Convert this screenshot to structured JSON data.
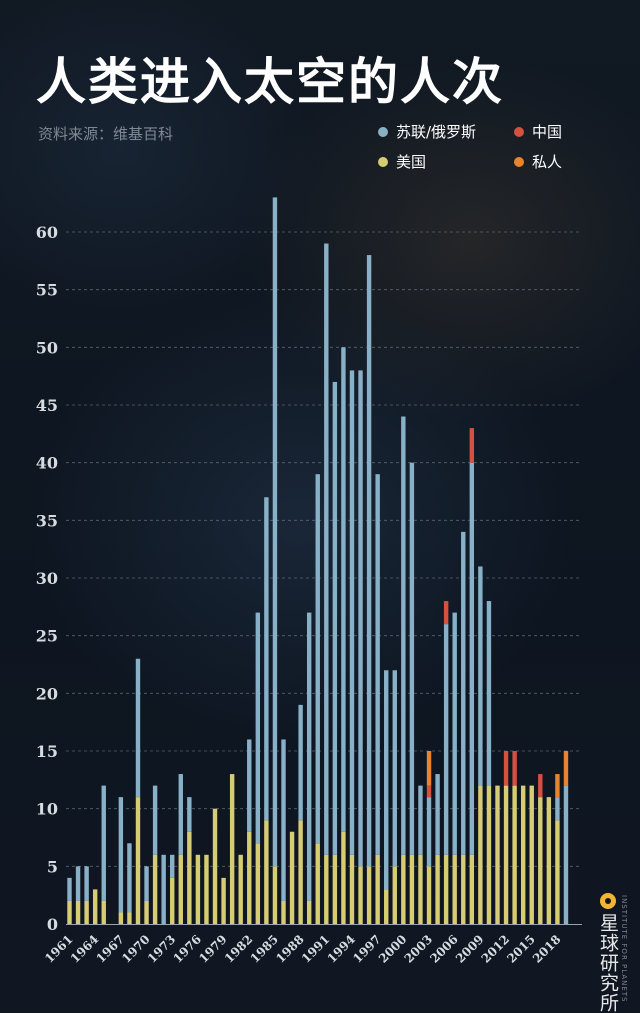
{
  "title": "人类进入太空的人次",
  "source": "资料来源：维基百科",
  "brand": {
    "name": "星球研究所",
    "subtitle": "INSTITUTE FOR PLANETS"
  },
  "colors": {
    "ussr_russia": "#88b1c8",
    "usa": "#d6cc72",
    "china": "#d4503f",
    "private": "#e8842d",
    "grid": "#6c7480",
    "tick": "#d8dce0"
  },
  "chart_data": {
    "type": "bar",
    "stacked": true,
    "title": "人类进入太空的人次",
    "years": [
      1961,
      1962,
      1963,
      1964,
      1965,
      1966,
      1967,
      1968,
      1969,
      1970,
      1971,
      1972,
      1973,
      1974,
      1975,
      1976,
      1977,
      1978,
      1979,
      1980,
      1981,
      1982,
      1983,
      1984,
      1985,
      1986,
      1987,
      1988,
      1989,
      1990,
      1991,
      1992,
      1993,
      1994,
      1995,
      1996,
      1997,
      1998,
      1999,
      2000,
      2001,
      2002,
      2003,
      2004,
      2005,
      2006,
      2007,
      2008,
      2009,
      2010,
      2011,
      2012,
      2013,
      2014,
      2015,
      2016,
      2017,
      2018,
      2019
    ],
    "x_tick_labels": [
      "1961",
      "1964",
      "1967",
      "1970",
      "1973",
      "1976",
      "1979",
      "1982",
      "1985",
      "1988",
      "1991",
      "1994",
      "1997",
      "2000",
      "2003",
      "2006",
      "2009",
      "2012",
      "2015",
      "2018"
    ],
    "ylim": [
      0,
      63
    ],
    "y_ticks": [
      0,
      5,
      10,
      15,
      20,
      25,
      30,
      35,
      40,
      45,
      50,
      55,
      60
    ],
    "grid": true,
    "legend_position": "top-right",
    "series": [
      {
        "name": "美国",
        "color_key": "usa",
        "values": [
          2,
          2,
          2,
          3,
          2,
          0,
          1,
          1,
          11,
          2,
          6,
          0,
          4,
          6,
          8,
          6,
          6,
          10,
          4,
          13,
          6,
          8,
          7,
          9,
          5,
          2,
          8,
          9,
          2,
          7,
          6,
          6,
          8,
          6,
          5,
          5,
          6,
          3,
          5,
          6,
          6,
          6,
          5,
          6,
          6,
          6,
          6,
          6,
          12,
          12,
          12,
          12,
          12,
          12,
          12,
          11,
          11,
          9,
          0
        ]
      },
      {
        "name": "苏联/俄罗斯",
        "color_key": "ussr_russia",
        "values": [
          2,
          3,
          3,
          0,
          10,
          0,
          10,
          6,
          12,
          3,
          6,
          6,
          2,
          7,
          3,
          0,
          0,
          0,
          0,
          0,
          0,
          8,
          20,
          28,
          58,
          14,
          0,
          10,
          25,
          32,
          53,
          41,
          42,
          42,
          43,
          53,
          33,
          19,
          17,
          38,
          34,
          6,
          6,
          7,
          20,
          21,
          28,
          34,
          19,
          16,
          0,
          0,
          0,
          0,
          0,
          0,
          0,
          2,
          12
        ]
      },
      {
        "name": "中国",
        "color_key": "china",
        "values": [
          0,
          0,
          0,
          0,
          0,
          0,
          0,
          0,
          0,
          0,
          0,
          0,
          0,
          0,
          0,
          0,
          0,
          0,
          0,
          0,
          0,
          0,
          0,
          0,
          0,
          0,
          0,
          0,
          0,
          0,
          0,
          0,
          0,
          0,
          0,
          0,
          0,
          0,
          0,
          0,
          0,
          0,
          1,
          0,
          2,
          0,
          0,
          3,
          0,
          0,
          0,
          3,
          3,
          0,
          0,
          2,
          0,
          0,
          0
        ]
      },
      {
        "name": "私人",
        "color_key": "private",
        "values": [
          0,
          0,
          0,
          0,
          0,
          0,
          0,
          0,
          0,
          0,
          0,
          0,
          0,
          0,
          0,
          0,
          0,
          0,
          0,
          0,
          0,
          0,
          0,
          0,
          0,
          0,
          0,
          0,
          0,
          0,
          0,
          0,
          0,
          0,
          0,
          0,
          0,
          0,
          0,
          0,
          0,
          0,
          3,
          0,
          0,
          0,
          0,
          0,
          0,
          0,
          0,
          0,
          0,
          0,
          0,
          0,
          0,
          2,
          3
        ]
      }
    ]
  }
}
